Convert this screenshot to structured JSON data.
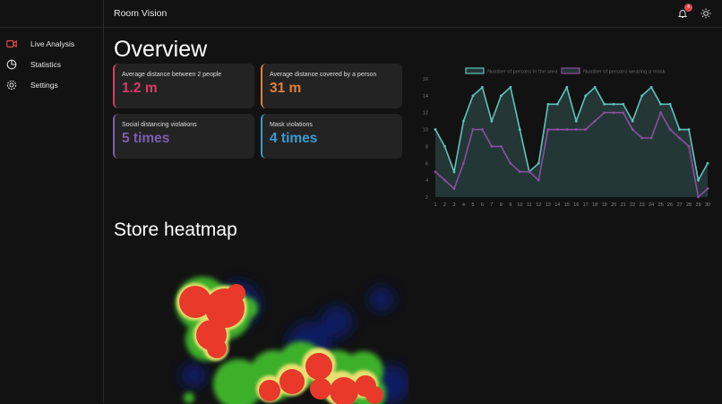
{
  "header": {
    "title": "Room Vision",
    "notification_count": "4"
  },
  "sidebar": {
    "items": [
      {
        "label": "Live Analysis",
        "icon": "video-camera-icon",
        "active": true
      },
      {
        "label": "Statistics",
        "icon": "pie-chart-icon",
        "active": false
      },
      {
        "label": "Settings",
        "icon": "gear-icon",
        "active": false
      }
    ]
  },
  "overview": {
    "title": "Overview",
    "cards": [
      {
        "label": "Average distance between 2 people",
        "value": "1.2 m",
        "color": "#d63d6a"
      },
      {
        "label": "Average distance covered by a person",
        "value": "31 m",
        "color": "#e0803a"
      },
      {
        "label": "Social distancing violations",
        "value": "5 times",
        "color": "#7a5fb0"
      },
      {
        "label": "Mask violations",
        "value": "4 times",
        "color": "#3d9bd0"
      }
    ]
  },
  "heatmap": {
    "title": "Store heatmap"
  },
  "colors": {
    "accent_red": "#e04848",
    "series_area": "#5ec4bb",
    "series_mask": "#8a4f9e"
  },
  "chart_data": {
    "type": "line",
    "title": "",
    "x": [
      1,
      2,
      3,
      4,
      5,
      6,
      7,
      8,
      9,
      10,
      11,
      12,
      13,
      14,
      15,
      16,
      17,
      18,
      19,
      20,
      21,
      22,
      23,
      24,
      25,
      26,
      27,
      28,
      29,
      30
    ],
    "series": [
      {
        "name": "Number of persons in the area",
        "values": [
          10,
          8,
          5,
          11,
          14,
          15,
          11,
          14,
          15,
          10,
          5,
          6,
          13,
          13,
          15,
          11,
          14,
          15,
          13,
          13,
          13,
          11,
          14,
          15,
          13,
          13,
          10,
          10,
          4,
          6
        ]
      },
      {
        "name": "Number of persons wearing a mask",
        "values": [
          5,
          4,
          3,
          6,
          10,
          10,
          8,
          8,
          6,
          5,
          5,
          4,
          10,
          10,
          10,
          10,
          10,
          11,
          12,
          12,
          12,
          10,
          9,
          9,
          12,
          10,
          9,
          8,
          2,
          3
        ]
      }
    ],
    "yticks": [
      2,
      4,
      6,
      8,
      10,
      12,
      14,
      16
    ],
    "ylim": [
      2,
      16
    ],
    "legend_position": "top",
    "grid": false,
    "xlabel": "",
    "ylabel": ""
  }
}
